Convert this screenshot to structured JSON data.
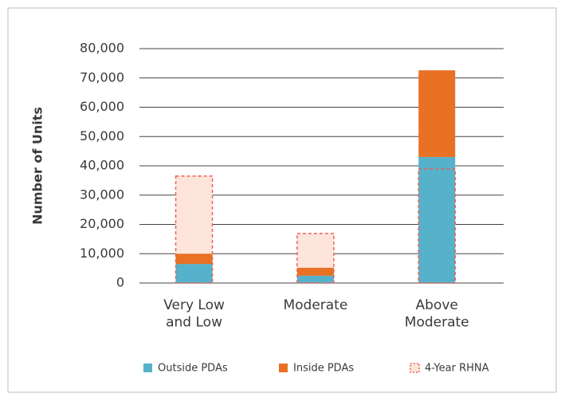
{
  "chart_data": {
    "type": "stacked_bar",
    "y_label": "Number of Units",
    "categories": [
      "Very Low\nand Low",
      "Moderate",
      "Above\nModerate"
    ],
    "series": [
      {
        "name": "Outside PDAs",
        "color": "#56b2cb",
        "values": [
          6500,
          2500,
          43000
        ]
      },
      {
        "name": "Inside PDAs",
        "color": "#e87124",
        "values": [
          3500,
          2700,
          29600
        ]
      }
    ],
    "outline": {
      "name": "4-Year RHNA",
      "color": "#ec5f55",
      "fill": "#fde5dc",
      "values": [
        36500,
        16900,
        38900
      ]
    },
    "ylim": [
      0,
      80000
    ],
    "yticks": [
      {
        "value": 0,
        "label": "0"
      },
      {
        "value": 10000,
        "label": "10,000"
      },
      {
        "value": 20000,
        "label": "20,000"
      },
      {
        "value": 30000,
        "label": "30,000"
      },
      {
        "value": 40000,
        "label": "40,000"
      },
      {
        "value": 50000,
        "label": "50,000"
      },
      {
        "value": 60000,
        "label": "60,000"
      },
      {
        "value": 70000,
        "label": "70,000"
      },
      {
        "value": 80000,
        "label": "80,000"
      }
    ],
    "grid": true
  }
}
